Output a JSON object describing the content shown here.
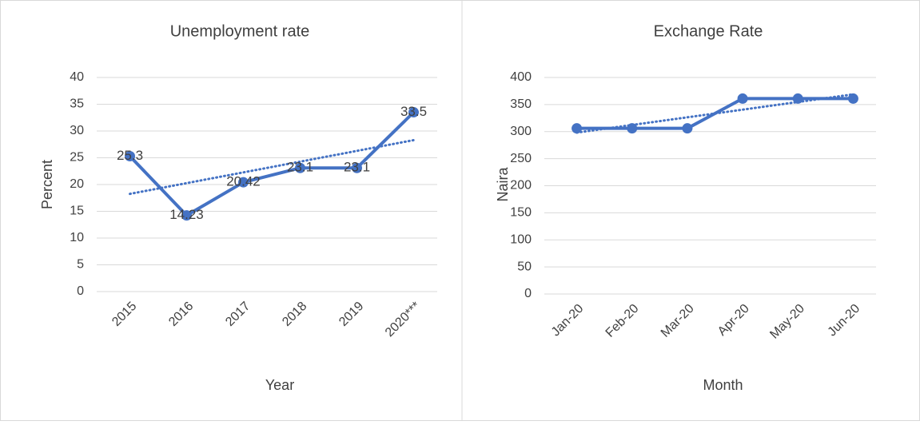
{
  "chart_data": [
    {
      "type": "line",
      "title": "Unemployment rate",
      "x_label": "Year",
      "y_label": "Percent",
      "categories": [
        "2015",
        "2016",
        "2017",
        "2018",
        "2019",
        "2020***"
      ],
      "series": [
        {
          "name": "Unemployment rate",
          "color": "#4472c4",
          "values": [
            25.3,
            14.23,
            20.42,
            23.1,
            23.1,
            33.5
          ]
        }
      ],
      "ylim": [
        0,
        40
      ],
      "yticks": [
        0,
        5,
        10,
        15,
        20,
        25,
        30,
        35,
        40
      ],
      "grid": true,
      "trendline": "linear",
      "value_labels_shown": true
    },
    {
      "type": "line",
      "title": "Exchange Rate",
      "x_label": "Month",
      "y_label": "Naira",
      "categories": [
        "Jan-20",
        "Feb-20",
        "Mar-20",
        "Apr-20",
        "May-20",
        "Jun-20"
      ],
      "series": [
        {
          "name": "Exchange Rate",
          "color": "#4472c4",
          "values": [
            306,
            306,
            306,
            361,
            361,
            361
          ]
        }
      ],
      "ylim": [
        0,
        400
      ],
      "yticks": [
        0,
        50,
        100,
        150,
        200,
        250,
        300,
        350,
        400
      ],
      "grid": true,
      "trendline": "linear",
      "value_labels_shown": false
    }
  ]
}
